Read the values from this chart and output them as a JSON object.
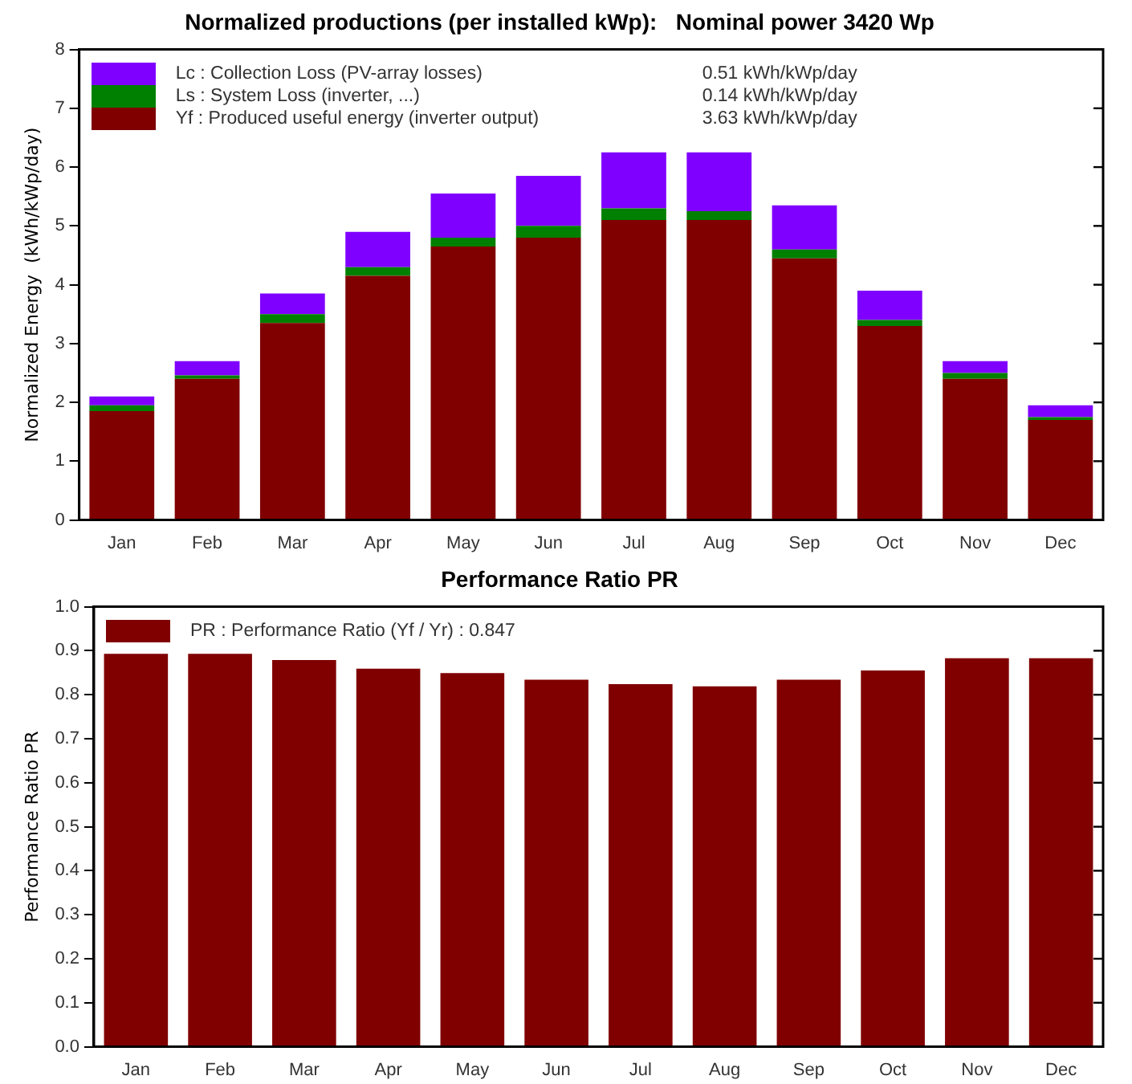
{
  "chart_data": [
    {
      "type": "bar",
      "title": "Normalized productions (per installed kWp):   Nominal power 3420 Wp",
      "ylabel": "Normalized Energy  (kWh/kWp/day)",
      "categories": [
        "Jan",
        "Feb",
        "Mar",
        "Apr",
        "May",
        "Jun",
        "Jul",
        "Aug",
        "Sep",
        "Oct",
        "Nov",
        "Dec"
      ],
      "stacked": true,
      "series": [
        {
          "name": "Yf : Produced useful energy  (inverter output)",
          "color": "#800000",
          "values": [
            1.85,
            2.4,
            3.35,
            4.15,
            4.65,
            4.8,
            5.1,
            5.1,
            4.45,
            3.3,
            2.4,
            1.7
          ]
        },
        {
          "name": "Ls : System Loss  (inverter, ...)",
          "color": "#008000",
          "values": [
            0.1,
            0.06,
            0.15,
            0.15,
            0.15,
            0.2,
            0.2,
            0.15,
            0.15,
            0.1,
            0.1,
            0.05
          ]
        },
        {
          "name": "Lc : Collection Loss (PV-array losses)",
          "color": "#8000ff",
          "values": [
            0.15,
            0.24,
            0.35,
            0.6,
            0.75,
            0.85,
            0.95,
            1.0,
            0.75,
            0.5,
            0.2,
            0.2
          ]
        }
      ],
      "annotations": [
        "3.63 kWh/kWp/day",
        "0.14 kWh/kWp/day",
        "0.51 kWh/kWp/day"
      ],
      "ylim": [
        0,
        8
      ],
      "yticks": [
        0,
        1,
        2,
        3,
        4,
        5,
        6,
        7,
        8
      ],
      "grid": false,
      "legend": "top left"
    },
    {
      "type": "bar",
      "title": "Performance Ratio PR",
      "ylabel": "Performance Ratio PR",
      "categories": [
        "Jan",
        "Feb",
        "Mar",
        "Apr",
        "May",
        "Jun",
        "Jul",
        "Aug",
        "Sep",
        "Oct",
        "Nov",
        "Dec"
      ],
      "series": [
        {
          "name": "PR : Performance Ratio (Yf / Yr) :  0.847",
          "color": "#800000",
          "values": [
            0.893,
            0.893,
            0.879,
            0.859,
            0.849,
            0.834,
            0.824,
            0.819,
            0.834,
            0.855,
            0.883,
            0.883
          ]
        }
      ],
      "ylim": [
        0,
        1
      ],
      "yticks": [
        {
          "value": 0,
          "label": "0.0"
        },
        0.1,
        0.2,
        0.3,
        0.4,
        0.5,
        0.6,
        0.7,
        0.8,
        0.9,
        {
          "value": 1,
          "label": "1.0"
        }
      ],
      "grid": false,
      "legend": "top left"
    }
  ]
}
